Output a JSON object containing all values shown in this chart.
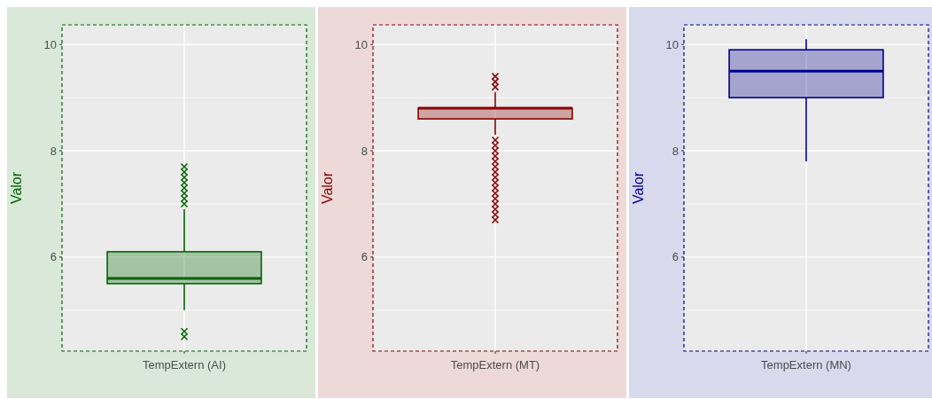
{
  "chart_data": [
    {
      "type": "box",
      "categories": [
        "TempExtern (AI)"
      ],
      "ylabel": "Valor",
      "color": "#006400",
      "ylim": [
        4.23,
        10.37
      ],
      "yticks": [
        6,
        8,
        10
      ],
      "grid": true,
      "marker": "cross",
      "line_style": "dashed",
      "boxes": [
        {
          "low": 5.0,
          "q1": 5.5,
          "median": 5.6,
          "q3": 6.1,
          "high": 6.9,
          "outliers": [
            7.0,
            7.1,
            7.2,
            7.3,
            7.4,
            7.5,
            7.6,
            7.7,
            4.6,
            4.5
          ]
        }
      ]
    },
    {
      "type": "box",
      "categories": [
        "TempExtern (MT)"
      ],
      "ylabel": "Valor",
      "color": "#8b0000",
      "ylim": [
        4.23,
        10.37
      ],
      "yticks": [
        6,
        8,
        10
      ],
      "grid": true,
      "marker": "cross",
      "line_style": "dashed",
      "boxes": [
        {
          "low": 8.3,
          "q1": 8.6,
          "median": 8.8,
          "q3": 8.8,
          "high": 9.1,
          "outliers": [
            9.2,
            9.3,
            9.4,
            8.2,
            8.1,
            8.0,
            7.9,
            7.8,
            7.7,
            7.6,
            7.5,
            7.4,
            7.3,
            7.2,
            7.1,
            7.0,
            6.9,
            6.8,
            6.7
          ]
        }
      ]
    },
    {
      "type": "box",
      "categories": [
        "TempExtern (MN)"
      ],
      "ylabel": "Valor",
      "color": "#00008b",
      "ylim": [
        4.23,
        10.37
      ],
      "yticks": [
        6,
        8,
        10
      ],
      "grid": true,
      "marker": "cross",
      "line_style": "dashed",
      "boxes": [
        {
          "low": 7.8,
          "q1": 9.0,
          "median": 9.5,
          "q3": 9.9,
          "high": 10.1
        }
      ]
    }
  ]
}
